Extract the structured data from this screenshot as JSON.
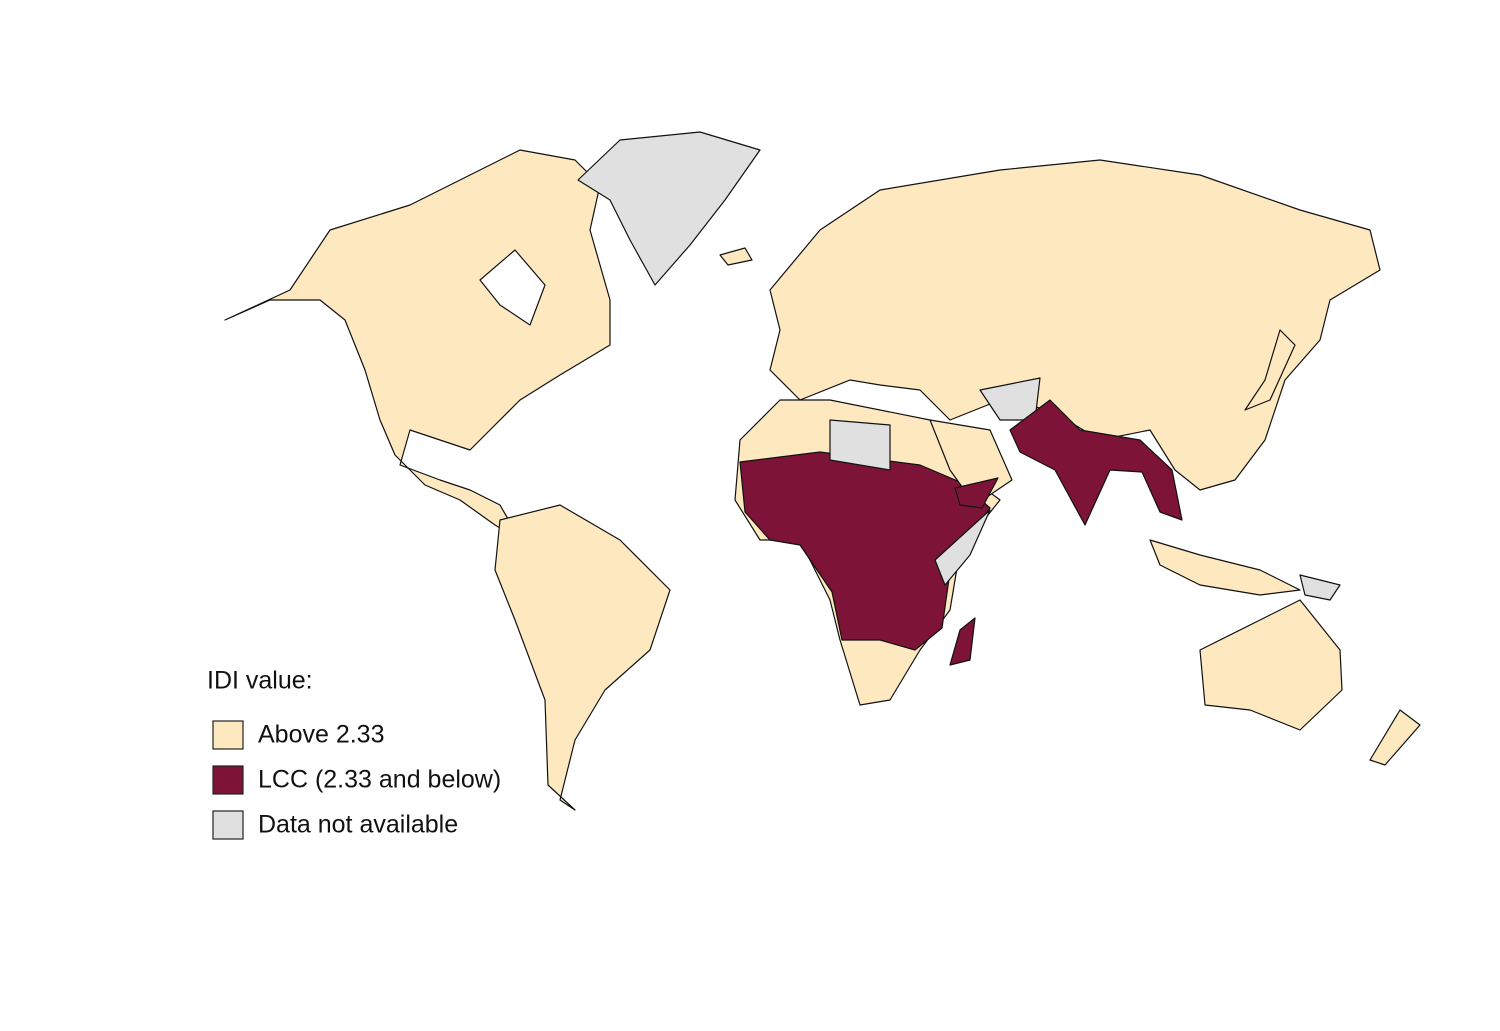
{
  "legend": {
    "title": "IDI value:",
    "items": [
      {
        "label": "Above 2.33",
        "color": "#fde8c0"
      },
      {
        "label": "LCC (2.33 and below)",
        "color": "#7d1437"
      },
      {
        "label": "Data not available",
        "color": "#e0e0e0"
      }
    ]
  }
}
